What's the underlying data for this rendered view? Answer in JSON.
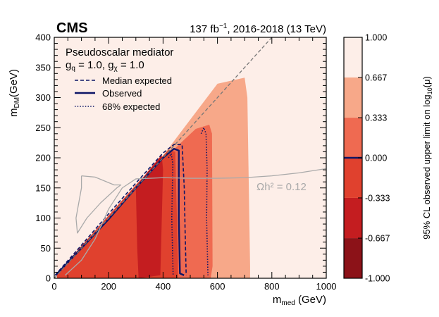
{
  "header": {
    "experiment": "CMS",
    "lumi_label": "137 fb",
    "lumi_sup": "−1",
    "lumi_rest": ", 2016-2018 (13 TeV)"
  },
  "legend": {
    "model": "Pseudoscalar mediator",
    "couplings": "g_q = 1.0, g_χ = 1.0",
    "entries": [
      {
        "label": "Median expected",
        "style": "dashed"
      },
      {
        "label": "Observed",
        "style": "solid"
      },
      {
        "label": "68% expected",
        "style": "dotted"
      }
    ]
  },
  "annotation": {
    "relic_label": "Ωh² = 0.12"
  },
  "chart_data": {
    "type": "heatmap",
    "title": "CMS 137 fb^-1, 2016-2018 (13 TeV)",
    "xlabel": "m_med (GeV)",
    "ylabel": "m_DM (GeV)",
    "zlabel": "95% CL observed upper limit on log10(μ)",
    "xlim": [
      0,
      1000
    ],
    "ylim": [
      0,
      400
    ],
    "zlim": [
      -1,
      1
    ],
    "xticks": [
      0,
      200,
      400,
      600,
      800,
      1000
    ],
    "yticks": [
      0,
      50,
      100,
      150,
      200,
      250,
      300,
      350,
      400
    ],
    "zticks": [
      "1.000",
      "0.667",
      "0.333",
      "0.000",
      "-0.333",
      "-0.667",
      "-1.000"
    ],
    "palette": [
      {
        "range": [
          -1.0,
          -0.667
        ],
        "color": "#8c1218"
      },
      {
        "range": [
          -0.667,
          -0.333
        ],
        "color": "#c41d20"
      },
      {
        "range": [
          -0.333,
          0.0
        ],
        "color": "#e0412e"
      },
      {
        "range": [
          0.0,
          0.333
        ],
        "color": "#ef6a51"
      },
      {
        "range": [
          0.333,
          0.667
        ],
        "color": "#f7a889"
      },
      {
        "range": [
          0.667,
          1.0
        ],
        "color": "#fdeee8"
      }
    ],
    "regions": [
      {
        "name": "band-0p667-1p0",
        "color": "#f7a889",
        "points": [
          [
            20,
            8
          ],
          [
            360,
            180
          ],
          [
            600,
            323
          ],
          [
            700,
            333
          ],
          [
            710,
            300
          ],
          [
            720,
            20
          ],
          [
            720,
            0
          ],
          [
            20,
            0
          ]
        ]
      },
      {
        "name": "band-0p333-0p667",
        "color": "#ef6a51",
        "points": [
          [
            15,
            8
          ],
          [
            360,
            180
          ],
          [
            520,
            248
          ],
          [
            570,
            255
          ],
          [
            580,
            240
          ],
          [
            582,
            20
          ],
          [
            575,
            0
          ],
          [
            15,
            0
          ]
        ]
      },
      {
        "name": "band-0-0p333",
        "color": "#e0412e",
        "points": [
          [
            10,
            8
          ],
          [
            300,
            155
          ],
          [
            420,
            213
          ],
          [
            445,
            210
          ],
          [
            455,
            30
          ],
          [
            455,
            0
          ],
          [
            10,
            0
          ]
        ]
      },
      {
        "name": "band-neg0p333-0",
        "color": "#c41d20",
        "points": [
          [
            300,
            150
          ],
          [
            340,
            175
          ],
          [
            395,
            205
          ],
          [
            400,
            180
          ],
          [
            390,
            5
          ],
          [
            310,
            0
          ],
          [
            305,
            50
          ]
        ]
      }
    ],
    "series": [
      {
        "name": "Observed",
        "style": "solid",
        "color": "#0d1566",
        "points": [
          [
            5,
            5
          ],
          [
            100,
            50
          ],
          [
            200,
            98
          ],
          [
            300,
            150
          ],
          [
            400,
            200
          ],
          [
            440,
            215
          ],
          [
            458,
            212
          ],
          [
            458,
            100
          ],
          [
            462,
            8
          ],
          [
            477,
            5
          ]
        ]
      },
      {
        "name": "Median expected",
        "style": "dashed",
        "color": "#0d1566",
        "points": [
          [
            3,
            5
          ],
          [
            100,
            55
          ],
          [
            200,
            107
          ],
          [
            300,
            158
          ],
          [
            400,
            208
          ],
          [
            440,
            222
          ],
          [
            470,
            222
          ],
          [
            478,
            150
          ],
          [
            481,
            80
          ],
          [
            485,
            5
          ]
        ]
      },
      {
        "name": "68% expected (upper)",
        "style": "dotted",
        "color": "#0d1566",
        "points": [
          [
            540,
            240
          ],
          [
            550,
            250
          ],
          [
            558,
            240
          ],
          [
            562,
            180
          ],
          [
            560,
            100
          ],
          [
            565,
            5
          ]
        ]
      },
      {
        "name": "68% expected (lower)",
        "style": "dotted",
        "color": "#0d1566",
        "points": [
          [
            420,
            200
          ],
          [
            430,
            207
          ],
          [
            436,
            190
          ],
          [
            432,
            100
          ],
          [
            437,
            5
          ]
        ]
      },
      {
        "name": "Diagonal m_DM = m_med/2",
        "style": "dashed",
        "color": "#777777",
        "points": [
          [
            0,
            0
          ],
          [
            800,
            400
          ]
        ]
      },
      {
        "name": "Relic density Ωh² = 0.12",
        "style": "solid",
        "color": "#aaaaaa",
        "points": [
          [
            40,
            5
          ],
          [
            100,
            30
          ],
          [
            150,
            65
          ],
          [
            200,
            115
          ],
          [
            250,
            150
          ],
          [
            300,
            165
          ],
          [
            400,
            167
          ],
          [
            500,
            166
          ],
          [
            600,
            166
          ],
          [
            700,
            167
          ],
          [
            800,
            170
          ],
          [
            900,
            175
          ],
          [
            1000,
            182
          ]
        ]
      },
      {
        "name": "Relic density island",
        "style": "solid",
        "color": "#aaaaaa",
        "points": [
          [
            100,
            170
          ],
          [
            150,
            168
          ],
          [
            220,
            155
          ],
          [
            245,
            155
          ],
          [
            230,
            150
          ],
          [
            170,
            125
          ],
          [
            120,
            100
          ],
          [
            85,
            75
          ],
          [
            80,
            100
          ],
          [
            100,
            150
          ],
          [
            100,
            170
          ]
        ]
      }
    ]
  }
}
